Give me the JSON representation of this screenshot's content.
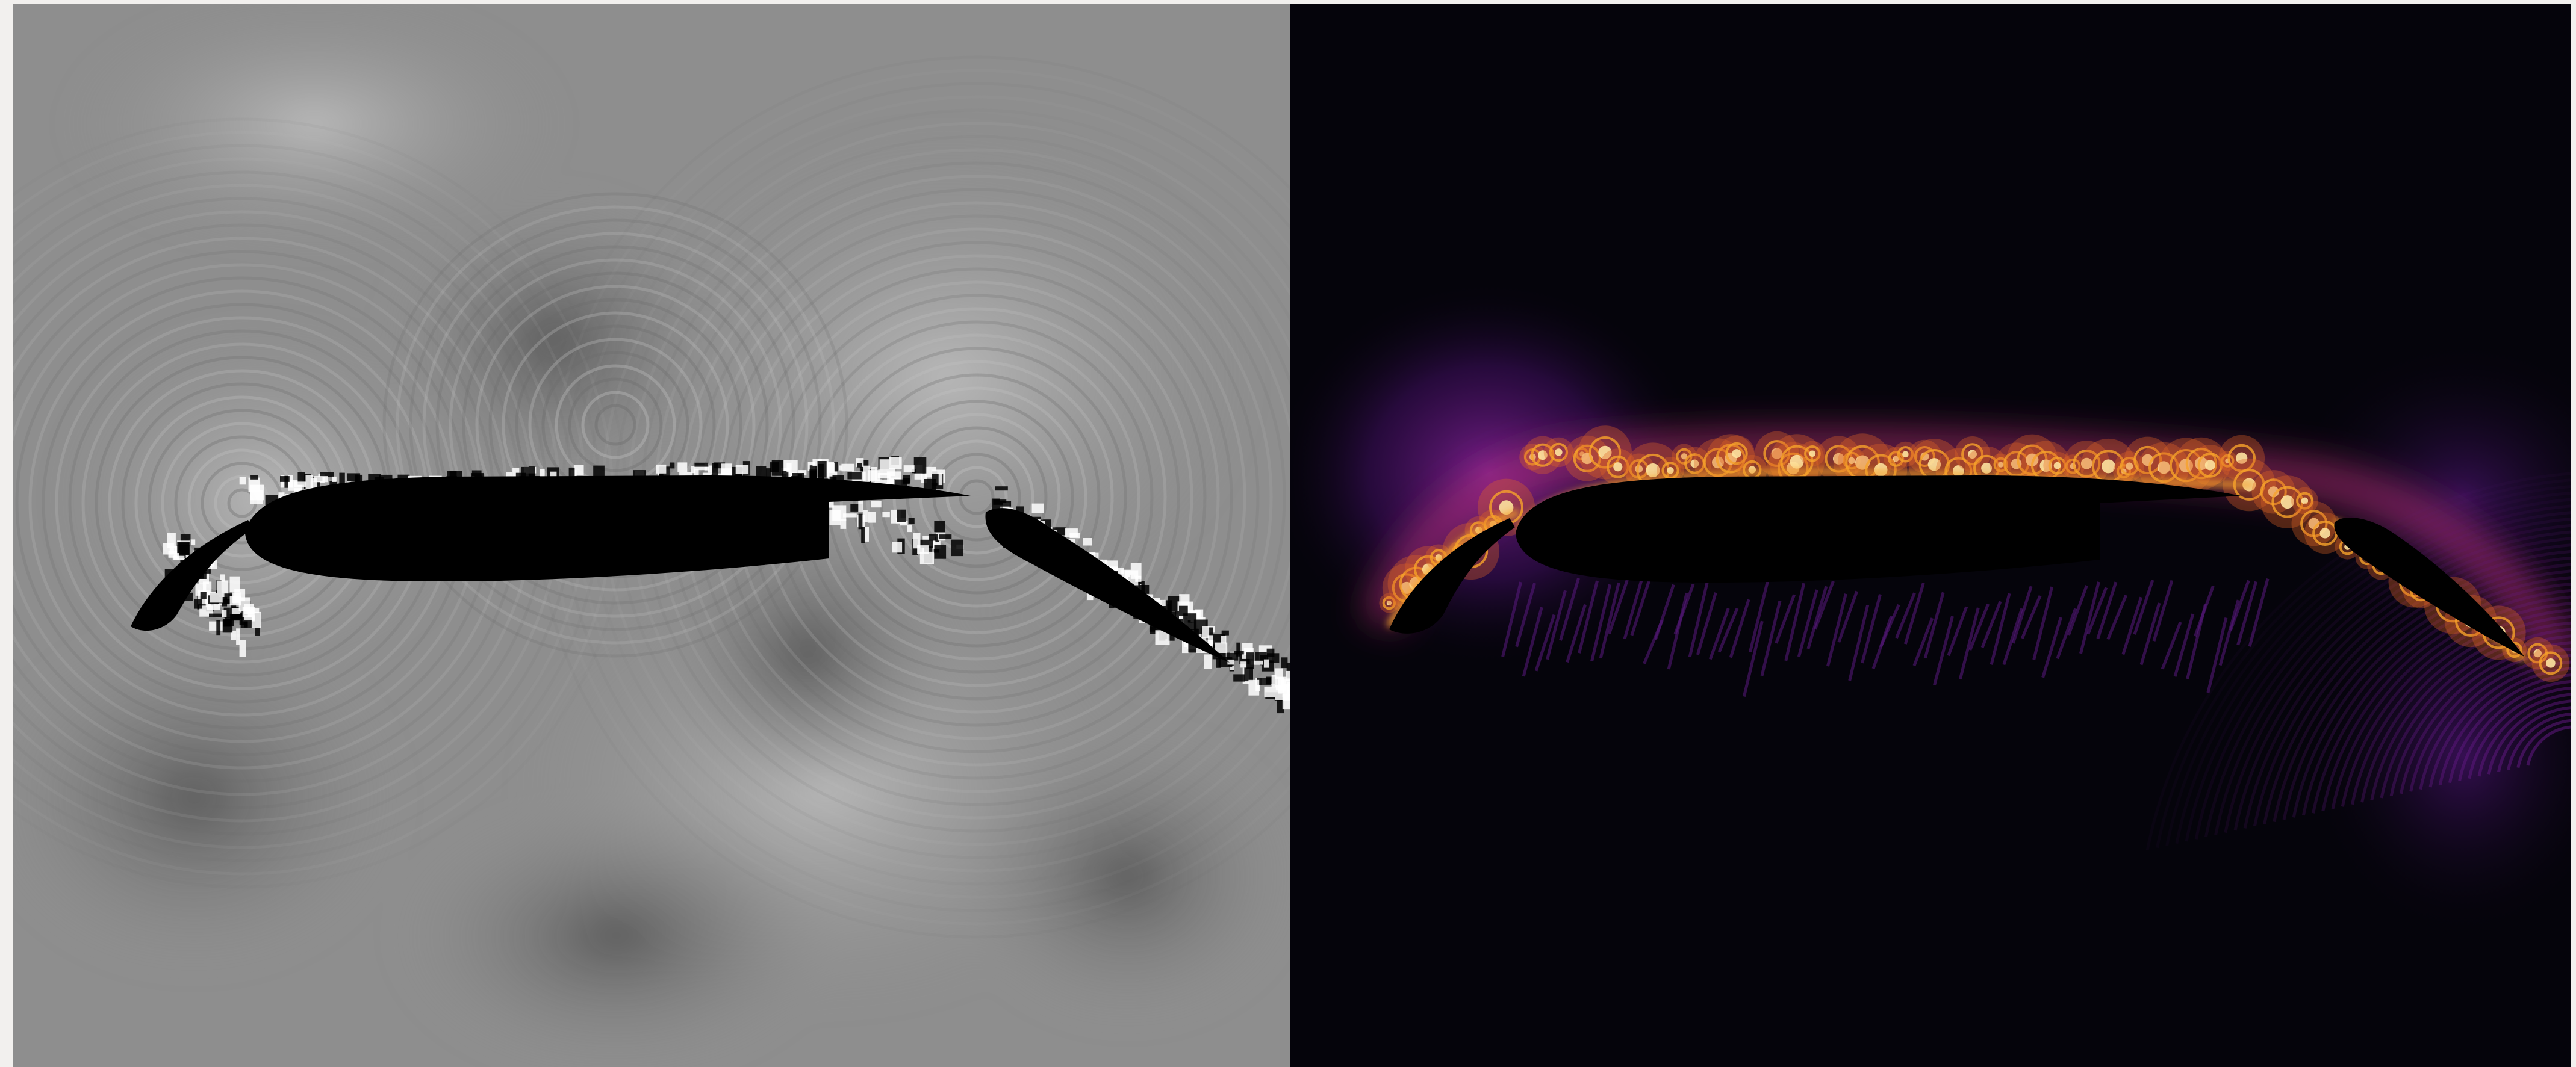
{
  "figure": {
    "panels": [
      {
        "id": "left",
        "field": "acoustic-pressure-grayscale",
        "colormap": "grayscale",
        "background": "#8e8e8e",
        "shape_color": "#000000"
      },
      {
        "id": "right",
        "field": "vorticity-inferno",
        "colormap": "inferno",
        "background": "#05040b",
        "shape_color": "#000000",
        "glow_colors": [
          "#fde3a0",
          "#f6a32a",
          "#e06324",
          "#b7317a",
          "#6a1a8c",
          "#2b0b4f"
        ]
      }
    ],
    "geometry_labels": [
      "slat-icon",
      "main-element-icon",
      "flap-icon"
    ]
  }
}
